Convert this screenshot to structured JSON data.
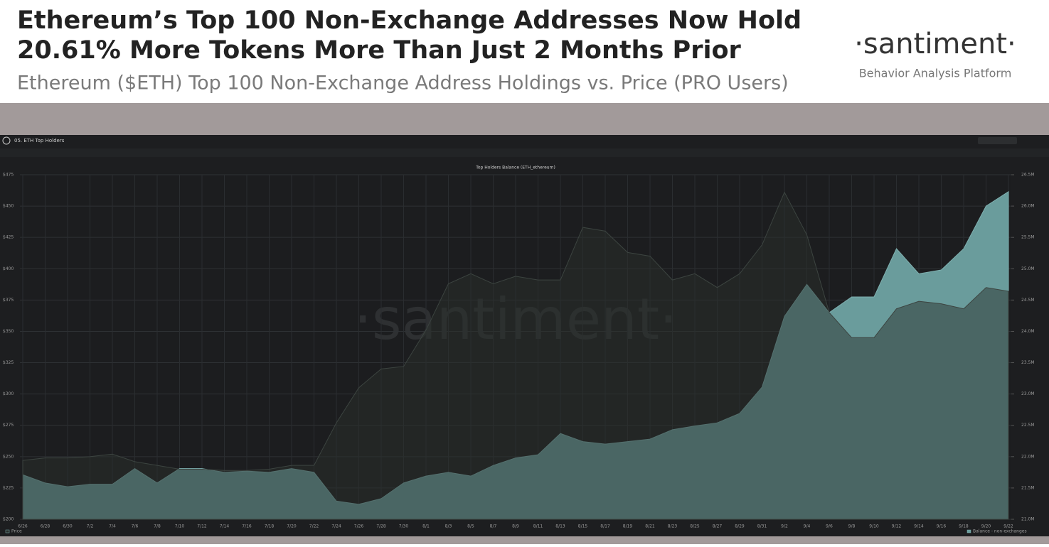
{
  "header": {
    "title_line1": "Ethereum’s Top 100 Non-Exchange Addresses Now Hold",
    "title_line2": "20.61% More Tokens More Than Just 2 Months Prior",
    "subtitle": "Ethereum ($ETH) Top 100 Non-Exchange Address Holdings vs. Price (PRO Users)",
    "logo": "·santiment·",
    "tagline": "Behavior Analysis Platform"
  },
  "dashboard": {
    "tab": "05. ETH Top Holders"
  },
  "chart_data": {
    "type": "area",
    "title": "Top Holders Balance (ETH_ethereum)",
    "watermark": "·santiment·",
    "categories": [
      "6/26",
      "6/28",
      "6/30",
      "7/2",
      "7/4",
      "7/6",
      "7/8",
      "7/10",
      "7/12",
      "7/14",
      "7/16",
      "7/18",
      "7/20",
      "7/22",
      "7/24",
      "7/26",
      "7/28",
      "7/30",
      "8/1",
      "8/3",
      "8/5",
      "8/7",
      "8/9",
      "8/11",
      "8/13",
      "8/15",
      "8/17",
      "8/19",
      "8/21",
      "8/23",
      "8/25",
      "8/27",
      "8/29",
      "8/31",
      "9/2",
      "9/4",
      "9/6",
      "9/8",
      "9/10",
      "9/12",
      "9/14",
      "9/16",
      "9/18",
      "9/20",
      "9/22"
    ],
    "series": [
      {
        "name": "Balance - non-exchanges",
        "color": "#6a9c9c",
        "axis": "y2",
        "values": [
          21.71,
          21.58,
          21.52,
          21.56,
          21.56,
          21.81,
          21.58,
          21.81,
          21.81,
          21.75,
          21.77,
          21.75,
          21.81,
          21.75,
          21.29,
          21.24,
          21.33,
          21.58,
          21.69,
          21.75,
          21.69,
          21.86,
          21.98,
          22.03,
          22.37,
          22.24,
          22.2,
          22.24,
          22.28,
          22.43,
          22.49,
          22.54,
          22.69,
          23.11,
          24.24,
          24.75,
          24.3,
          24.55,
          24.55,
          25.32,
          24.92,
          24.98,
          25.32,
          26.0,
          26.23
        ]
      },
      {
        "name": "Price",
        "color": "#2a2f2c",
        "values": [
          247,
          249,
          249,
          250,
          252,
          246,
          243,
          240,
          240,
          239,
          239,
          240,
          243,
          243,
          277,
          305,
          320,
          322,
          351,
          388,
          396,
          388,
          394,
          391,
          391,
          433,
          430,
          413,
          410,
          391,
          396,
          385,
          396,
          419,
          461,
          427,
          365,
          345,
          345,
          368,
          374,
          372,
          368,
          385,
          382
        ]
      }
    ],
    "ylim": [
      200,
      475
    ],
    "yticks": [
      {
        "value": 200,
        "label": "$200"
      },
      {
        "value": 225,
        "label": "$225"
      },
      {
        "value": 250,
        "label": "$250"
      },
      {
        "value": 275,
        "label": "$275"
      },
      {
        "value": 300,
        "label": "$300"
      },
      {
        "value": 325,
        "label": "$325"
      },
      {
        "value": 350,
        "label": "$350"
      },
      {
        "value": 375,
        "label": "$375"
      },
      {
        "value": 400,
        "label": "$400"
      },
      {
        "value": 425,
        "label": "$425"
      },
      {
        "value": 450,
        "label": "$450"
      },
      {
        "value": 475,
        "label": "$475"
      }
    ],
    "y2lim": [
      21.0,
      26.5
    ],
    "y2ticks": [
      {
        "value": 21.0,
        "label": "21.0M"
      },
      {
        "value": 21.5,
        "label": "21.5M"
      },
      {
        "value": 22.0,
        "label": "22.0M"
      },
      {
        "value": 22.5,
        "label": "22.5M"
      },
      {
        "value": 23.0,
        "label": "23.0M"
      },
      {
        "value": 23.5,
        "label": "23.5M"
      },
      {
        "value": 24.0,
        "label": "24.0M"
      },
      {
        "value": 24.5,
        "label": "24.5M"
      },
      {
        "value": 25.0,
        "label": "25.0M"
      },
      {
        "value": 25.5,
        "label": "25.5M"
      },
      {
        "value": 26.0,
        "label": "26.0M"
      },
      {
        "value": 26.5,
        "label": "26.5M"
      }
    ],
    "grid": true
  }
}
